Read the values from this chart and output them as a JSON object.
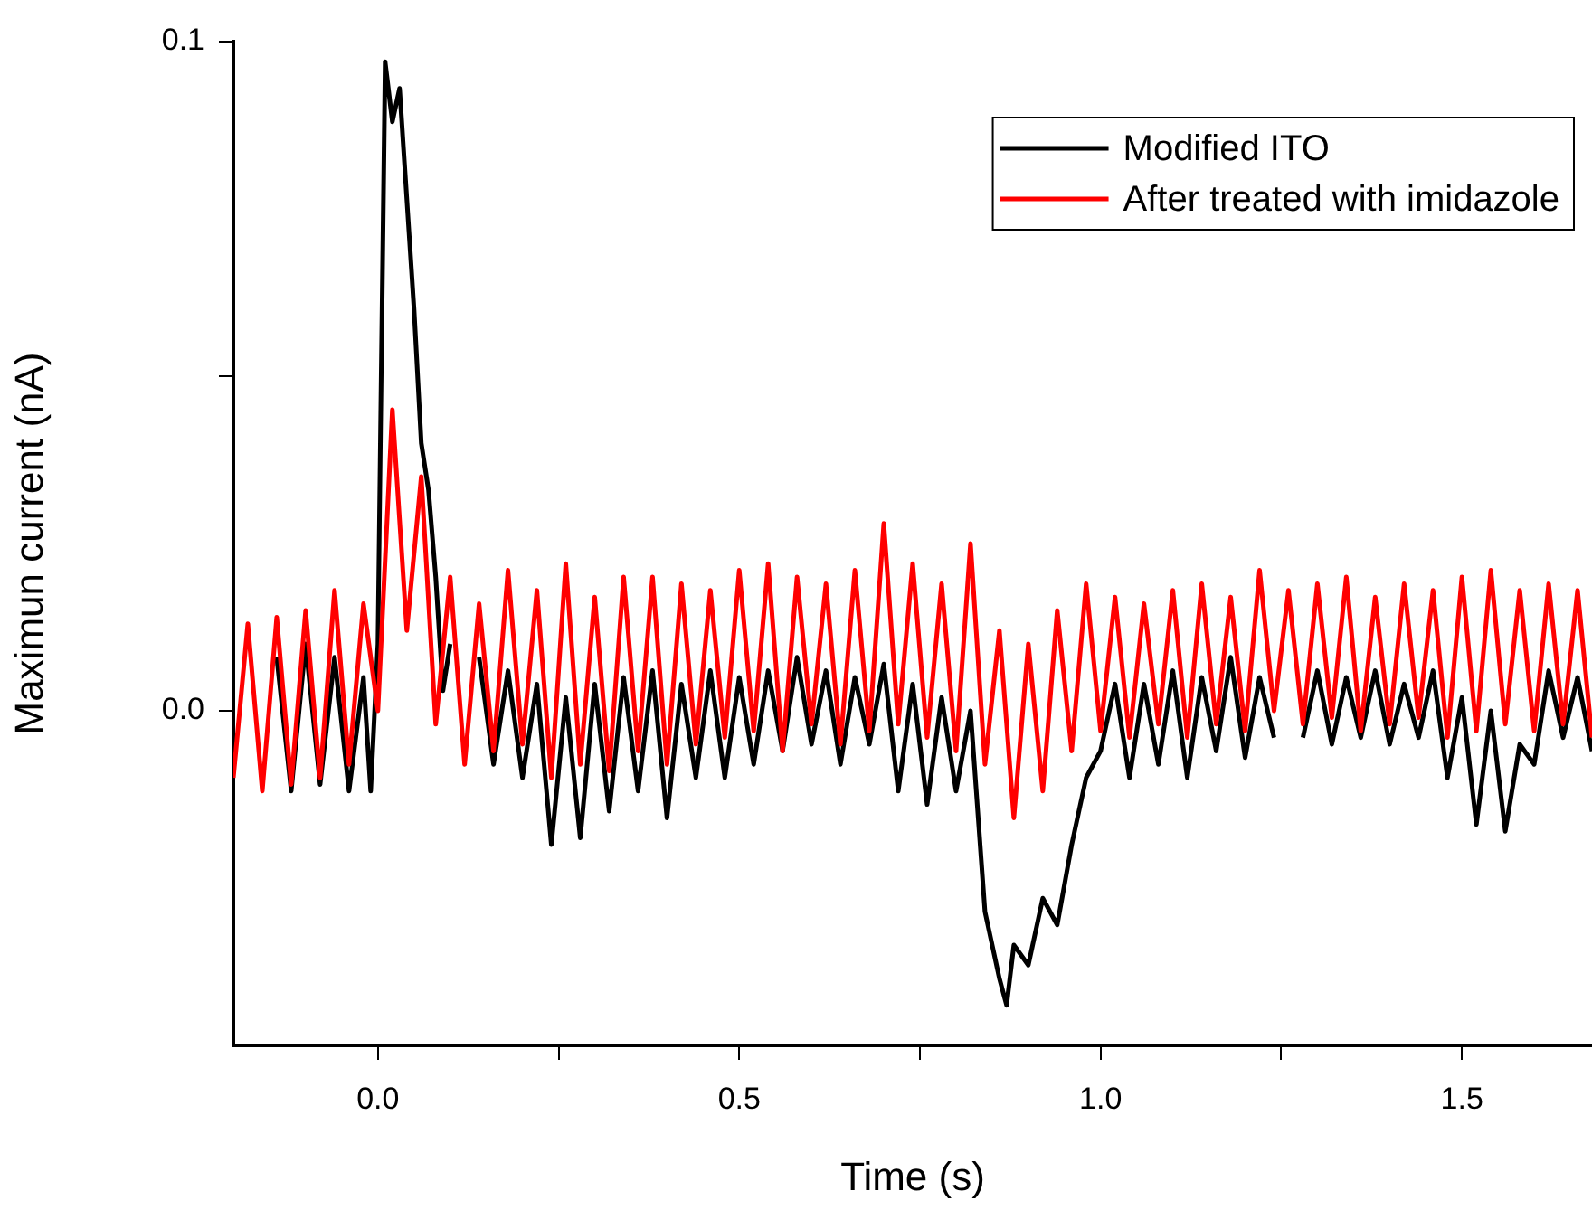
{
  "chart_data": {
    "type": "line",
    "xlabel": "Time (s)",
    "ylabel": "Maximun current (nA)",
    "xlim": [
      -0.2,
      1.68
    ],
    "ylim": [
      -0.05,
      0.1
    ],
    "xticks": [
      {
        "value": 0,
        "label": "0.0"
      },
      {
        "value": 0.25,
        "label": null
      },
      {
        "value": 0.5,
        "label": "0.5"
      },
      {
        "value": 0.75,
        "label": null
      },
      {
        "value": 1,
        "label": "1.0"
      },
      {
        "value": 1.25,
        "label": null
      },
      {
        "value": 1.5,
        "label": "1.5"
      }
    ],
    "yticks": [
      {
        "value": 0,
        "label": "0.0"
      },
      {
        "value": 0.05,
        "label": null
      },
      {
        "value": 0.1,
        "label": "0.1"
      }
    ],
    "grid": false,
    "legend": "top right",
    "marker": "none",
    "line_style": "solid",
    "series": [
      {
        "name": "Modified ITO",
        "color": "#000000",
        "x": [
          -0.14,
          -0.12,
          -0.1,
          -0.08,
          -0.06,
          -0.04,
          -0.02,
          -0.01,
          0,
          0.01,
          0.02,
          0.03,
          0.05,
          0.06,
          0.07,
          0.08,
          0.09,
          0.1,
          0.12,
          0.14,
          0.16,
          0.18,
          0.2,
          0.22,
          0.24,
          0.26,
          0.28,
          0.3,
          0.32,
          0.34,
          0.36,
          0.38,
          0.4,
          0.42,
          0.44,
          0.46,
          0.48,
          0.5,
          0.52,
          0.54,
          0.56,
          0.58,
          0.6,
          0.62,
          0.64,
          0.66,
          0.68,
          0.7,
          0.72,
          0.74,
          0.76,
          0.78,
          0.8,
          0.82,
          0.84,
          0.86,
          0.87,
          0.88,
          0.9,
          0.92,
          0.94,
          0.96,
          0.98,
          1,
          1.02,
          1.04,
          1.06,
          1.08,
          1.1,
          1.12,
          1.14,
          1.16,
          1.18,
          1.2,
          1.22,
          1.24,
          1.26,
          1.28,
          1.3,
          1.32,
          1.34,
          1.36,
          1.38,
          1.4,
          1.42,
          1.44,
          1.46,
          1.48,
          1.5,
          1.52,
          1.54,
          1.56,
          1.58,
          1.6,
          1.62,
          1.64,
          1.66,
          1.68
        ],
        "values": [
          0.008,
          -0.012,
          0.01,
          -0.011,
          0.008,
          -0.012,
          0.005,
          -0.012,
          0.01,
          0.097,
          0.088,
          0.093,
          0.06,
          0.04,
          0.033,
          0.02,
          0.003,
          0.01,
          null,
          0.008,
          -0.008,
          0.006,
          -0.01,
          0.004,
          -0.02,
          0.002,
          -0.019,
          0.004,
          -0.015,
          0.005,
          -0.012,
          0.006,
          -0.016,
          0.004,
          -0.01,
          0.006,
          -0.01,
          0.005,
          -0.008,
          0.006,
          -0.006,
          0.008,
          -0.005,
          0.006,
          -0.008,
          0.005,
          -0.005,
          0.007,
          -0.012,
          0.004,
          -0.014,
          0.002,
          -0.012,
          0,
          -0.03,
          -0.04,
          -0.044,
          -0.035,
          -0.038,
          -0.028,
          -0.032,
          -0.02,
          -0.01,
          -0.006,
          0.004,
          -0.01,
          0.004,
          -0.008,
          0.006,
          -0.01,
          0.005,
          -0.006,
          0.008,
          -0.007,
          0.005,
          -0.004,
          null,
          -0.004,
          0.006,
          -0.005,
          0.005,
          -0.004,
          0.006,
          -0.005,
          0.004,
          -0.004,
          0.006,
          -0.01,
          0.002,
          -0.017,
          0,
          -0.018,
          -0.005,
          -0.008,
          0.006,
          -0.004,
          0.005,
          -0.006
        ]
      },
      {
        "name": "After treated with imidazole",
        "color": "#ff0000",
        "x": [
          -0.2,
          -0.18,
          -0.16,
          -0.14,
          -0.12,
          -0.1,
          -0.08,
          -0.06,
          -0.04,
          -0.02,
          0,
          0.02,
          0.04,
          0.06,
          0.08,
          0.1,
          0.12,
          0.14,
          0.16,
          0.18,
          0.2,
          0.22,
          0.24,
          0.26,
          0.28,
          0.3,
          0.32,
          0.34,
          0.36,
          0.38,
          0.4,
          0.42,
          0.44,
          0.46,
          0.48,
          0.5,
          0.52,
          0.54,
          0.56,
          0.58,
          0.6,
          0.62,
          0.64,
          0.66,
          0.68,
          0.7,
          0.72,
          0.74,
          0.76,
          0.78,
          0.8,
          0.82,
          0.84,
          0.86,
          0.88,
          0.9,
          0.92,
          0.94,
          0.96,
          0.98,
          1,
          1.02,
          1.04,
          1.06,
          1.08,
          1.1,
          1.12,
          1.14,
          1.16,
          1.18,
          1.2,
          1.22,
          1.24,
          1.26,
          1.28,
          1.3,
          1.32,
          1.34,
          1.36,
          1.38,
          1.4,
          1.42,
          1.44,
          1.46,
          1.48,
          1.5,
          1.52,
          1.54,
          1.56,
          1.58,
          1.6,
          1.62,
          1.64,
          1.66,
          1.68
        ],
        "values": [
          -0.01,
          0.013,
          -0.012,
          0.014,
          -0.011,
          0.015,
          -0.01,
          0.018,
          -0.008,
          0.016,
          0,
          0.045,
          0.012,
          0.035,
          -0.002,
          0.02,
          -0.008,
          0.016,
          -0.006,
          0.021,
          -0.005,
          0.018,
          -0.01,
          0.022,
          -0.008,
          0.017,
          -0.009,
          0.02,
          -0.006,
          0.02,
          -0.008,
          0.019,
          -0.005,
          0.018,
          -0.004,
          0.021,
          -0.003,
          0.022,
          -0.006,
          0.02,
          -0.002,
          0.019,
          -0.005,
          0.021,
          -0.003,
          0.028,
          -0.002,
          0.022,
          -0.004,
          0.019,
          -0.006,
          0.025,
          -0.008,
          0.012,
          -0.016,
          0.01,
          -0.012,
          0.015,
          -0.006,
          0.019,
          -0.003,
          0.017,
          -0.004,
          0.016,
          -0.002,
          0.018,
          -0.004,
          0.019,
          -0.002,
          0.017,
          -0.003,
          0.021,
          0,
          0.018,
          -0.002,
          0.019,
          -0.001,
          0.02,
          -0.003,
          0.017,
          -0.002,
          0.019,
          -0.001,
          0.018,
          -0.004,
          0.02,
          -0.003,
          0.021,
          -0.002,
          0.018,
          -0.003,
          0.019,
          -0.002,
          0.018,
          -0.004
        ]
      }
    ]
  }
}
